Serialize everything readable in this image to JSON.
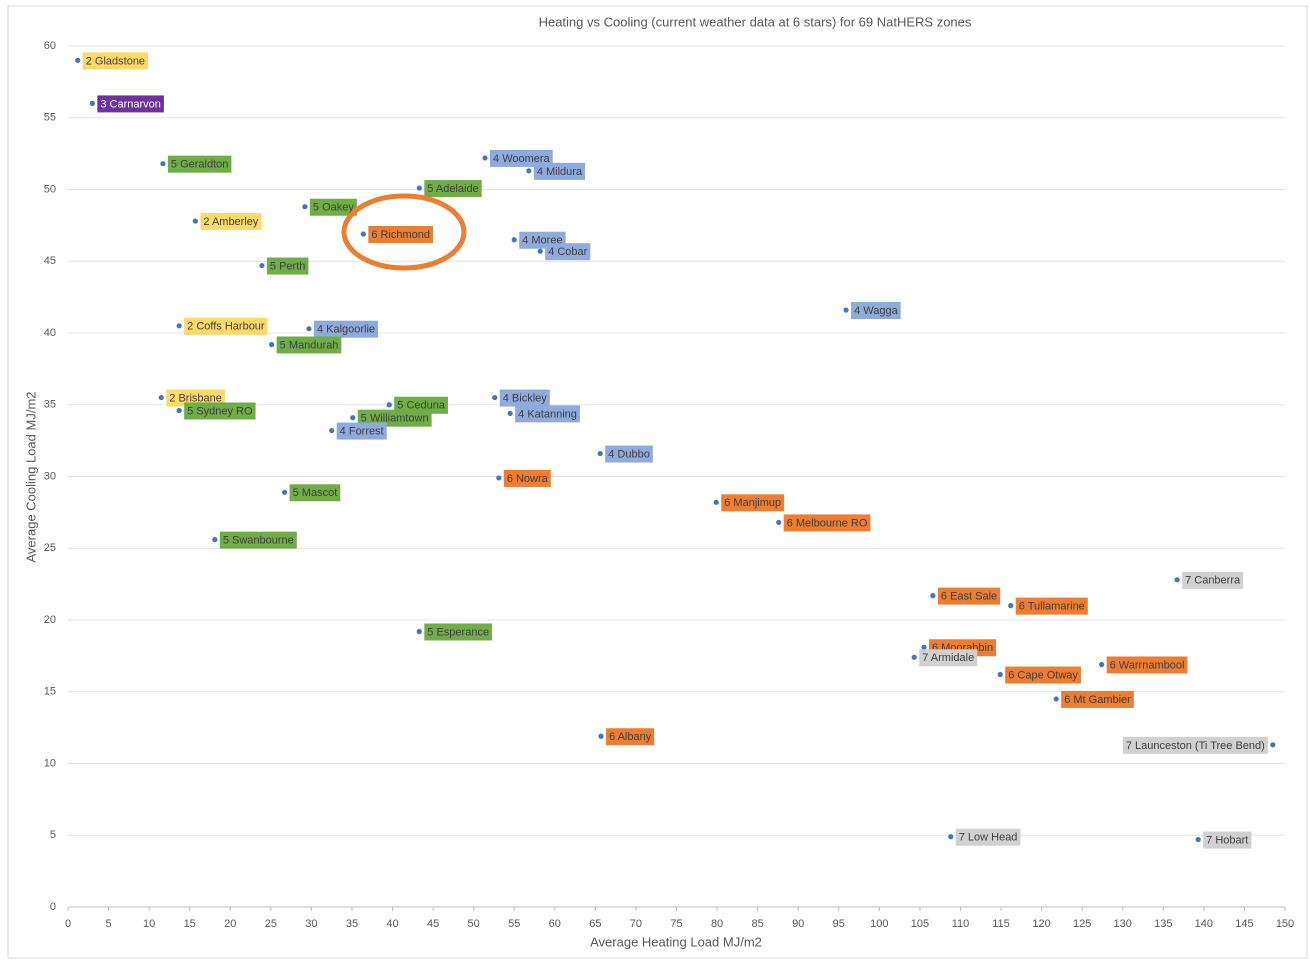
{
  "chart_data": {
    "type": "scatter",
    "title": "Heating vs Cooling (current weather data at 6 stars)  for 69 NatHERS zones",
    "xlabel": "Average Heating Load MJ/m2",
    "ylabel": "Average Cooling Load MJ/m2",
    "xlim": [
      0,
      150
    ],
    "ylim": [
      0,
      60
    ],
    "xticks": [
      0,
      5,
      10,
      15,
      20,
      25,
      30,
      35,
      40,
      45,
      50,
      55,
      60,
      65,
      70,
      75,
      80,
      85,
      90,
      95,
      100,
      105,
      110,
      115,
      120,
      125,
      130,
      135,
      140,
      145,
      150
    ],
    "yticks": [
      0,
      5,
      10,
      15,
      20,
      25,
      30,
      35,
      40,
      45,
      50,
      55,
      60
    ],
    "grid": true,
    "point_color": "#4472c4",
    "labels": [
      "2 Gladstone",
      "3 Carnarvon",
      "5 Geraldton",
      "4 Woomera",
      "4 Mildura",
      "5 Adelaide",
      "5 Oakey",
      "2 Amberley",
      "6 Richmond",
      "4 Moree",
      "4 Cobar",
      "5 Perth",
      "4 Wagga",
      "2 Coffs Harbour",
      "4 Kalgoorlie",
      "5 Mandurah",
      "2 Brisbane",
      "5 Sydney RO",
      "4 Bickley",
      "5 Ceduna",
      "5 Williamtown",
      "4 Katanning",
      "4 Forrest",
      "4 Dubbo",
      "6 Nowra",
      "5 Mascot",
      "6 Manjimup",
      "6 Melbourne RO",
      "5 Swanbourne",
      "7 Canberra",
      "6 East Sale",
      "6 Tullamarine",
      "5 Esperance",
      "6 Moorabbin",
      "7 Armidale",
      "6 Warrnambool",
      "6 Cape Otway",
      "6 Mt Gambier",
      "6 Albany",
      "7 Launceston (Ti Tree Bend)",
      "7 Low Head",
      "7 Hobart"
    ],
    "x": [
      1.2,
      3.0,
      11.7,
      51.4,
      56.8,
      43.3,
      29.2,
      15.7,
      36.4,
      55.0,
      58.2,
      23.9,
      95.9,
      13.7,
      29.7,
      25.1,
      11.5,
      13.7,
      52.6,
      39.6,
      35.1,
      54.5,
      32.5,
      65.6,
      53.1,
      26.7,
      79.9,
      87.6,
      18.1,
      136.7,
      106.6,
      116.2,
      43.3,
      105.5,
      104.3,
      127.4,
      114.9,
      121.8,
      65.7,
      148.5,
      108.8,
      139.3
    ],
    "y": [
      59.0,
      56.0,
      51.8,
      52.2,
      51.3,
      50.1,
      48.8,
      47.8,
      46.9,
      46.5,
      45.7,
      44.7,
      41.6,
      40.5,
      40.3,
      39.2,
      35.5,
      34.6,
      35.5,
      35.0,
      34.1,
      34.4,
      33.2,
      31.6,
      29.9,
      28.9,
      28.2,
      26.8,
      25.6,
      22.8,
      21.7,
      21.0,
      19.2,
      18.1,
      17.4,
      16.9,
      16.2,
      14.5,
      11.9,
      11.3,
      4.9,
      4.7
    ],
    "label_colors": [
      "#ffd966",
      "#7030a0",
      "#70ad47",
      "#8faadc",
      "#8faadc",
      "#70ad47",
      "#70ad47",
      "#ffd966",
      "#ed7d31",
      "#8faadc",
      "#8faadc",
      "#70ad47",
      "#8faadc",
      "#ffd966",
      "#8faadc",
      "#70ad47",
      "#ffd966",
      "#70ad47",
      "#8faadc",
      "#70ad47",
      "#70ad47",
      "#8faadc",
      "#8faadc",
      "#8faadc",
      "#ed7d31",
      "#70ad47",
      "#ed7d31",
      "#ed7d31",
      "#70ad47",
      "#d0d0d0",
      "#ed7d31",
      "#ed7d31",
      "#70ad47",
      "#ed7d31",
      "#d0d0d0",
      "#ed7d31",
      "#ed7d31",
      "#ed7d31",
      "#ed7d31",
      "#d0d0d0",
      "#d0d0d0",
      "#d0d0d0"
    ]
  }
}
